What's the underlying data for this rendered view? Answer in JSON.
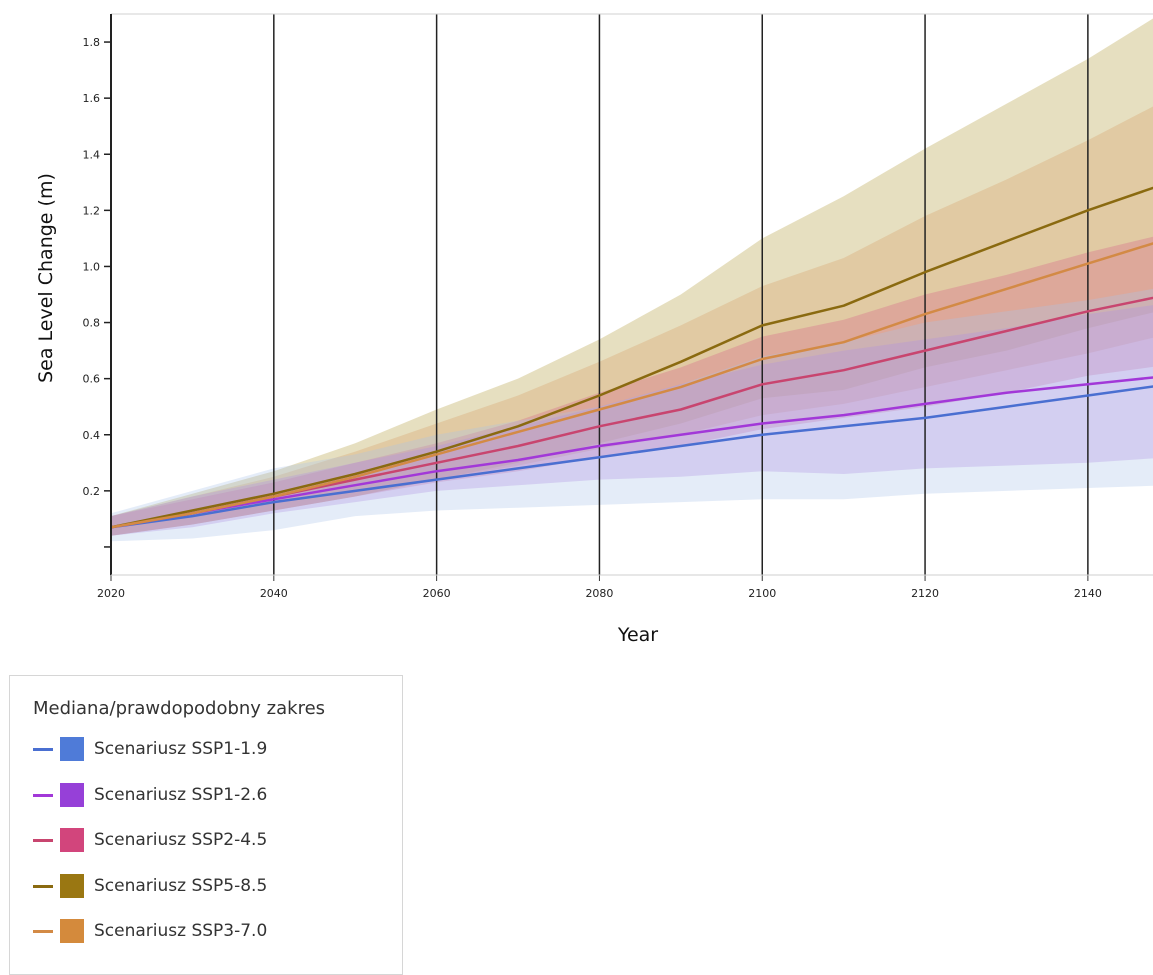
{
  "chart_data": {
    "type": "line",
    "title": "",
    "xlabel": "Year",
    "ylabel": "Sea Level Change (m)",
    "xlim": [
      2020,
      2148
    ],
    "ylim": [
      -0.1,
      1.9
    ],
    "x_ticks": [
      "2020",
      "2040",
      "2060",
      "2080",
      "2100",
      "2120",
      "2140"
    ],
    "y_ticks": [
      "",
      "0.2",
      "0.4",
      "0.6",
      "0.8",
      "1.0",
      "1.2",
      "1.4",
      "1.6",
      "1.8"
    ],
    "grid": "vertical",
    "x": [
      2020,
      2030,
      2040,
      2050,
      2060,
      2070,
      2080,
      2090,
      2100,
      2110,
      2120,
      2130,
      2140,
      2150
    ],
    "series": [
      {
        "name": "Scenariusz SSP1-1.9",
        "line_color": "#4a6fd1",
        "band_color": "#aac3ea",
        "median": [
          0.07,
          0.11,
          0.16,
          0.2,
          0.24,
          0.28,
          0.32,
          0.36,
          0.4,
          0.43,
          0.46,
          0.5,
          0.54,
          0.58
        ],
        "lower": [
          0.02,
          0.03,
          0.06,
          0.11,
          0.13,
          0.14,
          0.15,
          0.16,
          0.17,
          0.17,
          0.19,
          0.2,
          0.21,
          0.22
        ],
        "upper": [
          0.12,
          0.2,
          0.28,
          0.33,
          0.4,
          0.45,
          0.5,
          0.58,
          0.68,
          0.73,
          0.8,
          0.84,
          0.88,
          0.93
        ]
      },
      {
        "name": "Scenariusz SSP1-2.6",
        "line_color": "#a238d8",
        "band_color": "#b07ae0",
        "median": [
          0.07,
          0.12,
          0.17,
          0.22,
          0.27,
          0.31,
          0.36,
          0.4,
          0.44,
          0.47,
          0.51,
          0.55,
          0.58,
          0.61
        ],
        "lower": [
          0.04,
          0.07,
          0.12,
          0.16,
          0.2,
          0.22,
          0.24,
          0.25,
          0.27,
          0.26,
          0.28,
          0.29,
          0.3,
          0.32
        ],
        "upper": [
          0.11,
          0.18,
          0.24,
          0.3,
          0.36,
          0.43,
          0.5,
          0.58,
          0.65,
          0.7,
          0.74,
          0.78,
          0.83,
          0.87
        ]
      },
      {
        "name": "Scenariusz SSP2-4.5",
        "line_color": "#c8456f",
        "band_color": "#d86088",
        "median": [
          0.07,
          0.12,
          0.18,
          0.24,
          0.3,
          0.36,
          0.43,
          0.49,
          0.58,
          0.63,
          0.7,
          0.77,
          0.84,
          0.9
        ],
        "lower": [
          0.04,
          0.08,
          0.13,
          0.18,
          0.23,
          0.27,
          0.32,
          0.36,
          0.42,
          0.46,
          0.5,
          0.55,
          0.61,
          0.65
        ],
        "upper": [
          0.11,
          0.17,
          0.23,
          0.3,
          0.37,
          0.45,
          0.55,
          0.64,
          0.75,
          0.81,
          0.9,
          0.97,
          1.05,
          1.12
        ]
      },
      {
        "name": "Scenariusz SSP5-8.5",
        "line_color": "#8a6a10",
        "band_color": "#b29a3c",
        "median": [
          0.07,
          0.13,
          0.19,
          0.26,
          0.34,
          0.43,
          0.54,
          0.66,
          0.79,
          0.86,
          0.98,
          1.09,
          1.2,
          1.3
        ],
        "lower": [
          0.04,
          0.08,
          0.13,
          0.18,
          0.24,
          0.3,
          0.37,
          0.44,
          0.53,
          0.56,
          0.64,
          0.7,
          0.78,
          0.85
        ],
        "upper": [
          0.11,
          0.19,
          0.27,
          0.37,
          0.49,
          0.6,
          0.74,
          0.9,
          1.1,
          1.25,
          1.42,
          1.58,
          1.74,
          1.92
        ]
      },
      {
        "name": "Scenariusz SSP3-7.0",
        "line_color": "#d38a45",
        "band_color": "#d8a068",
        "median": [
          0.07,
          0.12,
          0.18,
          0.25,
          0.33,
          0.41,
          0.49,
          0.57,
          0.67,
          0.73,
          0.83,
          0.92,
          1.01,
          1.1
        ],
        "lower": [
          0.04,
          0.08,
          0.13,
          0.18,
          0.24,
          0.29,
          0.35,
          0.4,
          0.47,
          0.51,
          0.57,
          0.63,
          0.69,
          0.76
        ],
        "upper": [
          0.11,
          0.18,
          0.25,
          0.34,
          0.44,
          0.54,
          0.66,
          0.79,
          0.93,
          1.03,
          1.18,
          1.31,
          1.45,
          1.6
        ]
      }
    ],
    "legend": {
      "title": "Mediana/prawdopodobny zakres",
      "placement": "below-left"
    }
  }
}
